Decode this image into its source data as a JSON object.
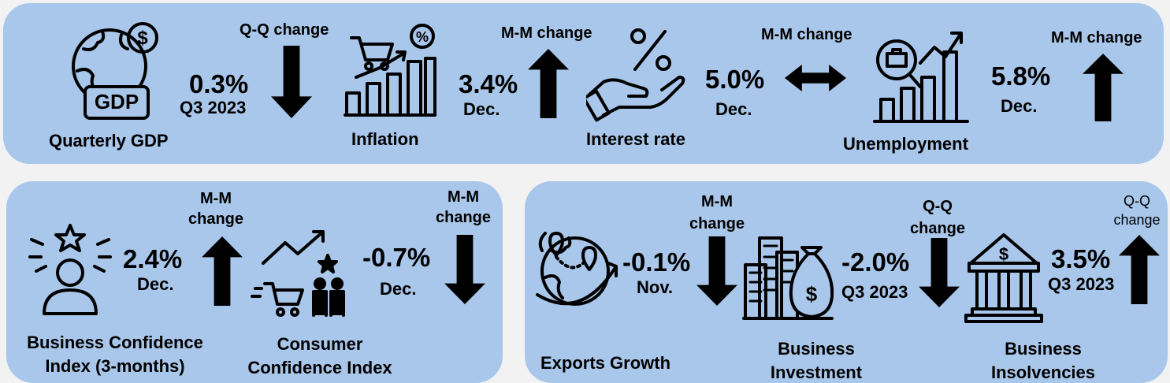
{
  "top": {
    "gdp": {
      "label": "Quarterly GDP",
      "value": "0.3%",
      "period": "Q3 2023",
      "change": "Q-Q change",
      "direction": "down",
      "icon": "globe-gdp-icon",
      "icon_text": "GDP"
    },
    "infl": {
      "label": "Inflation",
      "value": "3.4%",
      "period": "Dec.",
      "change": "M-M change",
      "direction": "up",
      "icon": "shopping-cart-chart-icon"
    },
    "rate": {
      "label": "Interest rate",
      "value": "5.0%",
      "period": "Dec.",
      "change": "M-M change",
      "direction": "flat",
      "icon": "hand-percent-icon"
    },
    "unemp": {
      "label": "Unemployment",
      "value": "5.8%",
      "period": "Dec.",
      "change": "M-M change",
      "direction": "up",
      "icon": "briefcase-chart-icon"
    }
  },
  "left": {
    "bci": {
      "label1": "Business Confidence",
      "label2": "Index (3-months)",
      "value": "2.4%",
      "period": "Dec.",
      "change1": "M-M",
      "change2": "change",
      "direction": "up",
      "icon": "person-star-icon"
    },
    "cci": {
      "label1": "Consumer",
      "label2": "Confidence Index",
      "value": "-0.7%",
      "period": "Dec.",
      "change1": "M-M",
      "change2": "change",
      "direction": "down",
      "icon": "consumers-cart-icon"
    }
  },
  "right": {
    "exp": {
      "label": "Exports Growth",
      "value": "-0.1%",
      "period": "Nov.",
      "change1": "M-M",
      "change2": "change",
      "direction": "down",
      "icon": "globe-route-icon"
    },
    "inv": {
      "label1": "Business",
      "label2": "Investment",
      "value": "-2.0%",
      "period": "Q3 2023",
      "change1": "Q-Q",
      "change2": "change",
      "direction": "down",
      "icon": "buildings-moneybag-icon"
    },
    "ins": {
      "label1": "Business",
      "label2": "Insolvencies",
      "value": "3.5%",
      "period": "Q3 2023",
      "change1": "Q-Q",
      "change2": "change",
      "direction": "up",
      "icon": "bank-dollar-icon"
    }
  },
  "colors": {
    "panel": "#a9c7ea",
    "background": "#f2f2f2",
    "ink": "#000000"
  }
}
